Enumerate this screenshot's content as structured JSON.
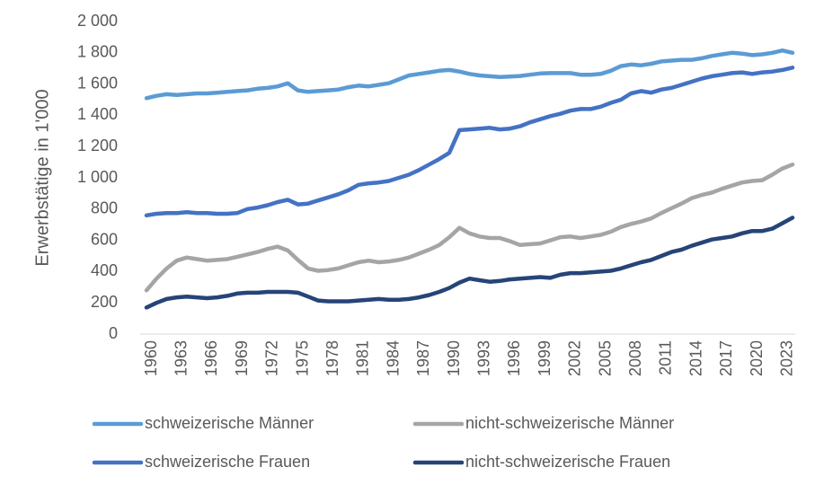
{
  "chart_data": {
    "type": "line",
    "title": "",
    "xlabel": "",
    "ylabel": "Erwerbstätige in 1'000",
    "ylim": [
      0,
      2000
    ],
    "y_ticks": [
      0,
      200,
      400,
      600,
      800,
      1000,
      1200,
      1400,
      1600,
      1800,
      2000
    ],
    "y_tick_labels": [
      "0",
      "200",
      "400",
      "600",
      "800",
      "1 000",
      "1 200",
      "1 400",
      "1 600",
      "1 800",
      "2 000"
    ],
    "x_tick_labels": [
      "1960",
      "1963",
      "1966",
      "1969",
      "1972",
      "1975",
      "1978",
      "1981",
      "1984",
      "1987",
      "1990",
      "1993",
      "1996",
      "1999",
      "2002",
      "2005",
      "2008",
      "2011",
      "2014",
      "2017",
      "2020",
      "2023"
    ],
    "grid": false,
    "legend_position": "bottom",
    "x": [
      1960,
      1961,
      1962,
      1963,
      1964,
      1965,
      1966,
      1967,
      1968,
      1969,
      1970,
      1971,
      1972,
      1973,
      1974,
      1975,
      1976,
      1977,
      1978,
      1979,
      1980,
      1981,
      1982,
      1983,
      1984,
      1985,
      1986,
      1987,
      1988,
      1989,
      1990,
      1991,
      1992,
      1993,
      1994,
      1995,
      1996,
      1997,
      1998,
      1999,
      2000,
      2001,
      2002,
      2003,
      2004,
      2005,
      2006,
      2007,
      2008,
      2009,
      2010,
      2011,
      2012,
      2013,
      2014,
      2015,
      2016,
      2017,
      2018,
      2019,
      2020,
      2021,
      2022,
      2023,
      2024
    ],
    "series": [
      {
        "name": "schweizerische Männer",
        "color": "#5B9BD5",
        "values": [
          1510,
          1525,
          1535,
          1530,
          1535,
          1540,
          1540,
          1545,
          1550,
          1555,
          1560,
          1570,
          1575,
          1585,
          1605,
          1560,
          1550,
          1555,
          1560,
          1565,
          1580,
          1590,
          1585,
          1595,
          1605,
          1630,
          1655,
          1665,
          1675,
          1685,
          1690,
          1680,
          1665,
          1655,
          1650,
          1645,
          1648,
          1652,
          1660,
          1668,
          1670,
          1670,
          1670,
          1660,
          1660,
          1665,
          1685,
          1715,
          1725,
          1720,
          1730,
          1745,
          1750,
          1755,
          1755,
          1765,
          1780,
          1790,
          1800,
          1795,
          1785,
          1790,
          1800,
          1815,
          1800
        ]
      },
      {
        "name": "nicht-schweizerische Männer",
        "color": "#A5A5A5",
        "values": [
          280,
          355,
          420,
          470,
          490,
          480,
          470,
          475,
          480,
          495,
          510,
          525,
          545,
          560,
          535,
          475,
          420,
          405,
          410,
          420,
          440,
          460,
          470,
          460,
          465,
          475,
          490,
          515,
          540,
          570,
          620,
          680,
          645,
          625,
          615,
          615,
          595,
          570,
          575,
          580,
          600,
          620,
          625,
          615,
          625,
          635,
          655,
          685,
          705,
          720,
          740,
          775,
          805,
          835,
          870,
          890,
          905,
          930,
          950,
          970,
          980,
          985,
          1020,
          1060,
          1085
        ]
      },
      {
        "name": "schweizerische Frauen",
        "color": "#4472C4",
        "values": [
          760,
          770,
          775,
          775,
          780,
          775,
          775,
          770,
          770,
          775,
          800,
          810,
          825,
          845,
          860,
          830,
          835,
          855,
          875,
          895,
          920,
          955,
          965,
          970,
          980,
          1000,
          1020,
          1050,
          1085,
          1120,
          1160,
          1305,
          1310,
          1315,
          1320,
          1310,
          1315,
          1330,
          1355,
          1375,
          1395,
          1410,
          1430,
          1440,
          1440,
          1455,
          1480,
          1500,
          1540,
          1555,
          1545,
          1565,
          1575,
          1595,
          1615,
          1635,
          1650,
          1660,
          1670,
          1675,
          1665,
          1675,
          1680,
          1690,
          1705
        ]
      },
      {
        "name": "nicht-schweizerische Frauen",
        "color": "#264478",
        "values": [
          170,
          200,
          225,
          235,
          240,
          235,
          230,
          235,
          245,
          260,
          265,
          265,
          270,
          270,
          270,
          265,
          240,
          215,
          210,
          210,
          210,
          215,
          220,
          225,
          220,
          220,
          225,
          235,
          250,
          270,
          295,
          330,
          355,
          345,
          335,
          340,
          350,
          355,
          360,
          365,
          360,
          380,
          390,
          390,
          395,
          400,
          405,
          420,
          440,
          460,
          475,
          500,
          525,
          540,
          565,
          585,
          605,
          615,
          625,
          645,
          660,
          660,
          675,
          710,
          745
        ]
      }
    ]
  }
}
